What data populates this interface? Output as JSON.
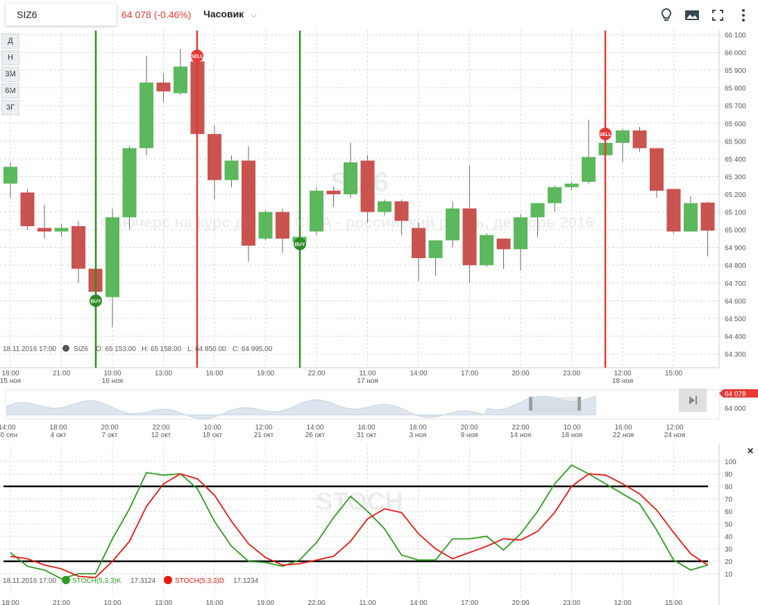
{
  "header": {
    "ticker": "SIZ6",
    "price_change": "64 078 (-0.46%)",
    "interval": "Часовик",
    "icons": [
      "lightbulb-icon",
      "image-icon",
      "fullscreen-icon",
      "more-vert-icon"
    ]
  },
  "period_buttons": [
    "Д",
    "Н",
    "3М",
    "6М",
    "3Г"
  ],
  "watermark": {
    "title": "SIZ6",
    "subtitle": "Фьючерс на курс доллар США - российский рубль, декабрь 2016"
  },
  "info_line": {
    "date": "18.11.2016 17:00",
    "ticker": "SIZ6",
    "open": "O: 65 153.00",
    "high": "H: 65 158.00",
    "low": "L: 64 850.00",
    "close": "C: 64 995.00"
  },
  "price_axis_labels": [
    "66 100",
    "66 000",
    "65 900",
    "65 800",
    "65 700",
    "65 600",
    "65 500",
    "65 400",
    "65 300",
    "65 200",
    "65 100",
    "65 000",
    "64 900",
    "64 800",
    "64 700",
    "64 600",
    "64 500",
    "64 400",
    "64 300"
  ],
  "time_axis_labels": [
    {
      "t": "18:00",
      "d": "15 ноя"
    },
    {
      "t": "21:00",
      "d": ""
    },
    {
      "t": "10:00",
      "d": "16 ноя"
    },
    {
      "t": "13:00",
      "d": ""
    },
    {
      "t": "16:00",
      "d": ""
    },
    {
      "t": "19:00",
      "d": ""
    },
    {
      "t": "22:00",
      "d": ""
    },
    {
      "t": "11:00",
      "d": "17 ноя"
    },
    {
      "t": "14:00",
      "d": ""
    },
    {
      "t": "17:00",
      "d": ""
    },
    {
      "t": "20:00",
      "d": ""
    },
    {
      "t": "23:00",
      "d": ""
    },
    {
      "t": "12:00",
      "d": "18 ноя"
    },
    {
      "t": "15:00",
      "d": ""
    }
  ],
  "navigator": {
    "price_labels": [
      "64 000"
    ],
    "current_price": "64 078",
    "time_labels": [
      {
        "t": "14:00",
        "d": "30 сен"
      },
      {
        "t": "18:00",
        "d": "4 окт"
      },
      {
        "t": "20:00",
        "d": "7 окт"
      },
      {
        "t": "22:00",
        "d": "12 окт"
      },
      {
        "t": "10:00",
        "d": "18 окт"
      },
      {
        "t": "12:00",
        "d": "21 окт"
      },
      {
        "t": "14:00",
        "d": "26 окт"
      },
      {
        "t": "16:00",
        "d": "31 окт"
      },
      {
        "t": "18:00",
        "d": "3 ноя"
      },
      {
        "t": "20:00",
        "d": "9 ноя"
      },
      {
        "t": "22:00",
        "d": "14 ноя"
      },
      {
        "t": "10:00",
        "d": "18 ноя"
      },
      {
        "t": "16:00",
        "d": "22 ноя"
      },
      {
        "t": "12:00",
        "d": "24 ноя"
      }
    ]
  },
  "stoch": {
    "watermark": "STOCH",
    "close_icon": "✕",
    "axis_labels": [
      "100",
      "90",
      "80",
      "70",
      "60",
      "50",
      "40",
      "30",
      "20",
      "10"
    ],
    "time_labels": [
      "18:00",
      "21:00",
      "10:00",
      "13:00",
      "16:00",
      "19:00",
      "22:00",
      "11:00",
      "14:00",
      "17:00",
      "20:00",
      "23:00",
      "12:00",
      "15:00"
    ],
    "info_date": "18.11.2016 17:00",
    "k_label": "STOCH(5,3,3)K",
    "k_value": "17.3124",
    "d_label": "STOCH(5,3,3)D",
    "d_value": "17.1234",
    "levels": [
      80,
      20
    ]
  },
  "signals": [
    {
      "type": "BUY",
      "index": 5
    },
    {
      "type": "SELL",
      "index": 11
    },
    {
      "type": "BUY",
      "index": 17
    },
    {
      "type": "SELL",
      "index": 35
    }
  ],
  "colors": {
    "up": "#5cb85c",
    "down": "#c9534f",
    "buy": "#2e8b22",
    "sell": "#e53935",
    "k_line": "#2e9a1e",
    "d_line": "#e8170f"
  },
  "chart_data": [
    {
      "type": "candlestick",
      "title": "SIZ6",
      "ylim": [
        64300,
        66100
      ],
      "candles": [
        {
          "o": 65260,
          "c": 65355,
          "h": 65380,
          "l": 65180
        },
        {
          "o": 65210,
          "c": 65020,
          "h": 65230,
          "l": 65000
        },
        {
          "o": 65010,
          "c": 64990,
          "h": 65140,
          "l": 64950
        },
        {
          "o": 64990,
          "c": 65010,
          "h": 65030,
          "l": 64960
        },
        {
          "o": 65020,
          "c": 64780,
          "h": 65050,
          "l": 64700
        },
        {
          "o": 64780,
          "c": 64650,
          "h": 64780,
          "l": 64580
        },
        {
          "o": 64620,
          "c": 65070,
          "h": 65120,
          "l": 64450
        },
        {
          "o": 65070,
          "c": 65460,
          "h": 65470,
          "l": 65000
        },
        {
          "o": 65460,
          "c": 65830,
          "h": 65980,
          "l": 65420
        },
        {
          "o": 65830,
          "c": 65780,
          "h": 65880,
          "l": 65720
        },
        {
          "o": 65770,
          "c": 65920,
          "h": 66020,
          "l": 65760
        },
        {
          "o": 65950,
          "c": 65540,
          "h": 66000,
          "l": 65500
        },
        {
          "o": 65540,
          "c": 65280,
          "h": 65590,
          "l": 65170
        },
        {
          "o": 65280,
          "c": 65390,
          "h": 65420,
          "l": 65240
        },
        {
          "o": 65390,
          "c": 64910,
          "h": 65470,
          "l": 64820
        },
        {
          "o": 64950,
          "c": 65100,
          "h": 65110,
          "l": 64940
        },
        {
          "o": 65100,
          "c": 64950,
          "h": 65120,
          "l": 64870
        },
        {
          "o": 64930,
          "c": 64960,
          "h": 65040,
          "l": 64900
        },
        {
          "o": 64990,
          "c": 65220,
          "h": 65240,
          "l": 64970
        },
        {
          "o": 65220,
          "c": 65200,
          "h": 65240,
          "l": 65130
        },
        {
          "o": 65200,
          "c": 65380,
          "h": 65490,
          "l": 65180
        },
        {
          "o": 65390,
          "c": 65100,
          "h": 65420,
          "l": 65040
        },
        {
          "o": 65100,
          "c": 65160,
          "h": 65170,
          "l": 65080
        },
        {
          "o": 65160,
          "c": 65050,
          "h": 65170,
          "l": 64970
        },
        {
          "o": 65010,
          "c": 64840,
          "h": 65040,
          "l": 64710
        },
        {
          "o": 64840,
          "c": 64940,
          "h": 64940,
          "l": 64740
        },
        {
          "o": 64940,
          "c": 65120,
          "h": 65160,
          "l": 64900
        },
        {
          "o": 65120,
          "c": 64800,
          "h": 65360,
          "l": 64700
        },
        {
          "o": 64800,
          "c": 64970,
          "h": 64980,
          "l": 64790
        },
        {
          "o": 64950,
          "c": 64890,
          "h": 64950,
          "l": 64780
        },
        {
          "o": 64890,
          "c": 65070,
          "h": 65090,
          "l": 64770
        },
        {
          "o": 65070,
          "c": 65150,
          "h": 65150,
          "l": 64960
        },
        {
          "o": 65150,
          "c": 65240,
          "h": 65250,
          "l": 65100
        },
        {
          "o": 65240,
          "c": 65260,
          "h": 65270,
          "l": 65220
        },
        {
          "o": 65270,
          "c": 65410,
          "h": 65620,
          "l": 65260
        },
        {
          "o": 65420,
          "c": 65490,
          "h": 65560,
          "l": 65400
        },
        {
          "o": 65490,
          "c": 65560,
          "h": 65570,
          "l": 65380
        },
        {
          "o": 65560,
          "c": 65460,
          "h": 65580,
          "l": 65440
        },
        {
          "o": 65460,
          "c": 65220,
          "h": 65460,
          "l": 65180
        },
        {
          "o": 65230,
          "c": 64990,
          "h": 65230,
          "l": 64980
        },
        {
          "o": 64990,
          "c": 65150,
          "h": 65190,
          "l": 64990
        },
        {
          "o": 65153,
          "c": 64995,
          "h": 65158,
          "l": 64850
        }
      ]
    },
    {
      "type": "line",
      "title": "STOCH",
      "ylim": [
        0,
        100
      ],
      "series": [
        {
          "name": "STOCH(5,3,3)K",
          "values": [
            27,
            16,
            13,
            6,
            10,
            10,
            38,
            62,
            91,
            89,
            90,
            78,
            52,
            32,
            20,
            19,
            16,
            21,
            35,
            55,
            72,
            60,
            46,
            25,
            21,
            21,
            38,
            38,
            40,
            29,
            42,
            60,
            82,
            97,
            90,
            82,
            74,
            66,
            45,
            21,
            13,
            17
          ]
        },
        {
          "name": "STOCH(5,3,3)D",
          "values": [
            24,
            22,
            17,
            14,
            8,
            7,
            20,
            36,
            64,
            82,
            90,
            86,
            73,
            52,
            34,
            23,
            17,
            18,
            21,
            24,
            36,
            54,
            62,
            59,
            42,
            30,
            22,
            27,
            32,
            38,
            37,
            44,
            59,
            80,
            90,
            89,
            82,
            74,
            61,
            43,
            26,
            17
          ]
        }
      ]
    }
  ]
}
